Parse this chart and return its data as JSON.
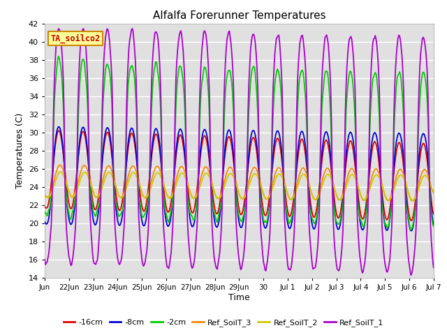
{
  "title": "Alfalfa Forerunner Temperatures",
  "ylabel": "Temperatures (C)",
  "xlabel": "Time",
  "annotation_text": "TA_soilco2",
  "annotation_color": "#cc0000",
  "annotation_bg": "#ffff99",
  "annotation_border": "#cc8800",
  "ylim": [
    14,
    42
  ],
  "yticks": [
    14,
    16,
    18,
    20,
    22,
    24,
    26,
    28,
    30,
    32,
    34,
    36,
    38,
    40,
    42
  ],
  "series_colors": {
    "-16cm": "#dd0000",
    "-8cm": "#0000dd",
    "-2cm": "#00cc00",
    "Ref_SoilT_3": "#ff8800",
    "Ref_SoilT_2": "#cccc00",
    "Ref_SoilT_1": "#aa00cc"
  },
  "legend_order": [
    "-16cm",
    "-8cm",
    "-2cm",
    "Ref_SoilT_3",
    "Ref_SoilT_2",
    "Ref_SoilT_1"
  ],
  "bg_color": "#e0e0e0",
  "grid_color": "#ffffff",
  "xtick_labels": [
    "Jun",
    "22Jun",
    "23Jun",
    "24Jun",
    "25Jun",
    "26Jun",
    "27Jun",
    "28Jun",
    "29Jun",
    "30",
    "Jul 1",
    "Jul 2",
    "Jul 3",
    "Jul 4",
    "Jul 5",
    "Jul 6",
    "Jul 7"
  ],
  "num_points": 481
}
